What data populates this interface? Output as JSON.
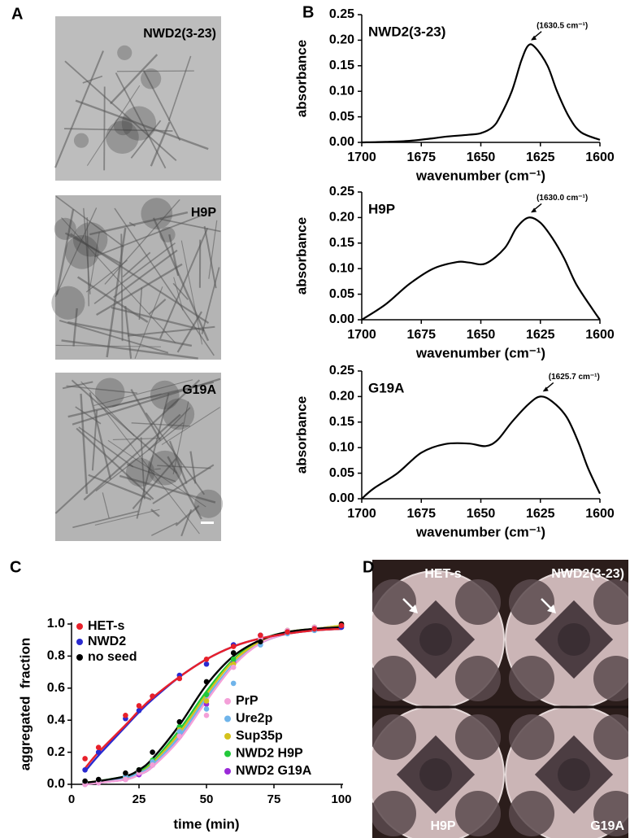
{
  "panel_labels": [
    "A",
    "B",
    "C",
    "D"
  ],
  "micrographs": [
    {
      "label": "NWD2(3-23)"
    },
    {
      "label": "H9P"
    },
    {
      "label": "G19A"
    }
  ],
  "plates": [
    "HET-s",
    "NWD2(3-23)",
    "H9P",
    "G19A"
  ],
  "chart_data": [
    {
      "type": "line",
      "title": "NWD2(3-23)",
      "annotation": "(1630.5 cm⁻¹)",
      "xlabel": "wavenumber (cm⁻¹)",
      "ylabel": "absorbance",
      "color": "#000000",
      "x": [
        1700,
        1690,
        1680,
        1670,
        1665,
        1655,
        1650,
        1645,
        1642,
        1637,
        1633,
        1630,
        1627,
        1622,
        1618,
        1613,
        1608,
        1600
      ],
      "values": [
        0,
        0.001,
        0.003,
        0.008,
        0.011,
        0.015,
        0.018,
        0.03,
        0.05,
        0.1,
        0.16,
        0.19,
        0.185,
        0.15,
        0.1,
        0.05,
        0.02,
        0.005
      ],
      "xlim": [
        1700,
        1600
      ],
      "ylim": [
        0,
        0.25
      ],
      "xticks": [
        1700,
        1675,
        1650,
        1625,
        1600
      ],
      "yticks": [
        {
          "value": 0,
          "label": "0.00"
        },
        {
          "value": 0.05,
          "label": "0.05"
        },
        {
          "value": 0.1,
          "label": "0.10"
        },
        {
          "value": 0.15,
          "label": "0.15"
        },
        {
          "value": 0.2,
          "label": "0.20"
        },
        {
          "value": 0.25,
          "label": "0.25"
        }
      ]
    },
    {
      "type": "line",
      "title": "H9P",
      "annotation": "(1630.0 cm⁻¹)",
      "xlabel": "wavenumber (cm⁻¹)",
      "ylabel": "absorbance",
      "color": "#000000",
      "x": [
        1700,
        1690,
        1680,
        1670,
        1660,
        1655,
        1648,
        1640,
        1635,
        1630,
        1625,
        1620,
        1615,
        1610,
        1603,
        1600
      ],
      "values": [
        0,
        0.03,
        0.07,
        0.1,
        0.113,
        0.112,
        0.11,
        0.14,
        0.18,
        0.2,
        0.19,
        0.16,
        0.12,
        0.07,
        0.02,
        0
      ],
      "xlim": [
        1700,
        1600
      ],
      "ylim": [
        0,
        0.25
      ],
      "xticks": [
        1700,
        1675,
        1650,
        1625,
        1600
      ],
      "yticks": [
        {
          "value": 0,
          "label": "0.00"
        },
        {
          "value": 0.05,
          "label": "0.05"
        },
        {
          "value": 0.1,
          "label": "0.10"
        },
        {
          "value": 0.15,
          "label": "0.15"
        },
        {
          "value": 0.2,
          "label": "0.20"
        },
        {
          "value": 0.25,
          "label": "0.25"
        }
      ]
    },
    {
      "type": "line",
      "title": "G19A",
      "annotation": "(1625.7 cm⁻¹)",
      "xlabel": "wavenumber (cm⁻¹)",
      "ylabel": "absorbance",
      "color": "#000000",
      "x": [
        1700,
        1695,
        1685,
        1675,
        1665,
        1655,
        1648,
        1643,
        1637,
        1630,
        1625,
        1620,
        1614,
        1609,
        1605,
        1600
      ],
      "values": [
        0,
        0.02,
        0.05,
        0.09,
        0.107,
        0.108,
        0.103,
        0.115,
        0.15,
        0.185,
        0.2,
        0.19,
        0.16,
        0.11,
        0.06,
        0.01
      ],
      "xlim": [
        1700,
        1600
      ],
      "ylim": [
        0,
        0.25
      ],
      "xticks": [
        1700,
        1675,
        1650,
        1625,
        1600
      ],
      "yticks": [
        {
          "value": 0,
          "label": "0.00"
        },
        {
          "value": 0.05,
          "label": "0.05"
        },
        {
          "value": 0.1,
          "label": "0.10"
        },
        {
          "value": 0.15,
          "label": "0.15"
        },
        {
          "value": 0.2,
          "label": "0.20"
        },
        {
          "value": 0.25,
          "label": "0.25"
        }
      ]
    },
    {
      "type": "scatter",
      "xlabel": "time (min)",
      "ylabel": "aggregated  fraction",
      "x": [
        5,
        10,
        20,
        25,
        30,
        40,
        50,
        60,
        70,
        80,
        90,
        100
      ],
      "xlim": [
        0,
        100
      ],
      "ylim": [
        0,
        1
      ],
      "xticks": [
        0,
        25,
        50,
        75,
        100
      ],
      "yticks": [
        {
          "value": 0,
          "label": "0.0"
        },
        {
          "value": 0.2,
          "label": "0.2"
        },
        {
          "value": 0.4,
          "label": "0.4"
        },
        {
          "value": 0.6,
          "label": "0.6"
        },
        {
          "value": 0.8,
          "label": "0.8"
        },
        {
          "value": 1,
          "label": "1.0"
        }
      ],
      "series": [
        {
          "name": "HET-s",
          "color": "#e8202a",
          "legend": "upper left",
          "values": [
            0.16,
            0.23,
            0.43,
            0.49,
            0.55,
            0.66,
            0.78,
            0.86,
            0.93,
            0.95,
            0.97,
            0.99
          ],
          "fit": [
            0.1,
            0.2,
            0.37,
            0.46,
            0.54,
            0.67,
            0.78,
            0.86,
            0.91,
            0.94,
            0.96,
            0.97
          ]
        },
        {
          "name": "NWD2",
          "color": "#2a2ad0",
          "legend": "upper left",
          "values": [
            0.09,
            0.2,
            0.41,
            0.46,
            0.55,
            0.68,
            0.75,
            0.87,
            0.93,
            0.95,
            0.97,
            0.98
          ],
          "fit": [
            0.08,
            0.18,
            0.36,
            0.45,
            0.53,
            0.67,
            0.78,
            0.86,
            0.91,
            0.94,
            0.96,
            0.97
          ]
        },
        {
          "name": "no seed",
          "color": "#000000",
          "legend": "upper left",
          "values": [
            0.02,
            0.03,
            0.07,
            0.09,
            0.2,
            0.39,
            0.64,
            0.82,
            0.89,
            0.95,
            0.97,
            1
          ],
          "fit": [
            0.01,
            0.02,
            0.05,
            0.09,
            0.16,
            0.37,
            0.62,
            0.8,
            0.9,
            0.95,
            0.97,
            0.98
          ]
        },
        {
          "name": "PrP",
          "color": "#f4a0d8",
          "legend": "lower right",
          "values": [
            0,
            0.01,
            0.03,
            0.07,
            0.12,
            0.3,
            0.43,
            0.73,
            0.91,
            0.96,
            0.98,
            0.99
          ],
          "fit": [
            0,
            0.01,
            0.03,
            0.06,
            0.11,
            0.28,
            0.52,
            0.74,
            0.88,
            0.94,
            0.97,
            0.98
          ]
        },
        {
          "name": "Ure2p",
          "color": "#6fb4ea",
          "legend": "lower right",
          "values": [
            0.01,
            0.02,
            0.05,
            0.08,
            0.14,
            0.33,
            0.47,
            0.63,
            0.87,
            0.94,
            0.96,
            0.98
          ],
          "fit": [
            0.01,
            0.01,
            0.04,
            0.07,
            0.12,
            0.3,
            0.54,
            0.75,
            0.88,
            0.94,
            0.97,
            0.98
          ]
        },
        {
          "name": "Sup35p",
          "color": "#d4c21c",
          "legend": "lower right",
          "values": [
            0.01,
            0.02,
            0.04,
            0.08,
            0.14,
            0.34,
            0.52,
            0.75,
            0.9,
            0.96,
            0.98,
            1
          ],
          "fit": [
            0.01,
            0.02,
            0.04,
            0.07,
            0.13,
            0.32,
            0.56,
            0.77,
            0.89,
            0.95,
            0.97,
            0.99
          ]
        },
        {
          "name": "NWD2 H9P",
          "color": "#22c83a",
          "legend": "lower right",
          "values": [
            0.01,
            0.02,
            0.05,
            0.09,
            0.15,
            0.36,
            0.56,
            0.78,
            0.9,
            0.96,
            0.98,
            0.99
          ],
          "fit": [
            0.01,
            0.02,
            0.05,
            0.08,
            0.14,
            0.34,
            0.58,
            0.78,
            0.9,
            0.95,
            0.97,
            0.99
          ]
        },
        {
          "name": "NWD2 G19A",
          "color": "#9a2ad8",
          "legend": "lower right",
          "values": [
            0,
            0.01,
            0.03,
            0.06,
            0.12,
            0.3,
            0.5,
            0.76,
            0.9,
            0.95,
            0.97,
            0.99
          ],
          "fit": [
            0,
            0.01,
            0.03,
            0.06,
            0.11,
            0.29,
            0.53,
            0.75,
            0.88,
            0.94,
            0.97,
            0.98
          ]
        }
      ]
    }
  ]
}
